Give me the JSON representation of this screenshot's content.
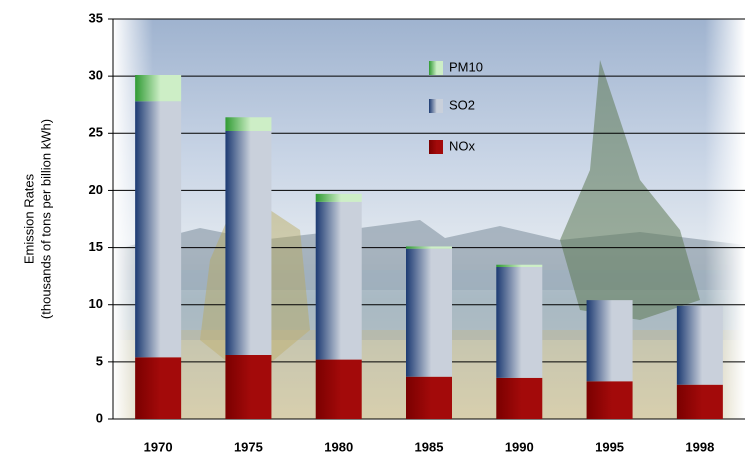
{
  "chart_data": {
    "type": "stacked_bar",
    "ylabel": [
      "Emission Rates",
      "(thousands of tons per billion kWh)"
    ],
    "categories": [
      "1970",
      "1975",
      "1980",
      "1985",
      "1990",
      "1995",
      "1998"
    ],
    "series": [
      {
        "name": "NOx",
        "color": "#7a0000",
        "color_light": "#a30a0a",
        "values": [
          5.4,
          5.6,
          5.2,
          3.7,
          3.6,
          3.3,
          3.0
        ]
      },
      {
        "name": "SO2",
        "color": "#1c3a72",
        "color_light": "#c9d0db",
        "values": [
          22.4,
          19.6,
          13.8,
          11.2,
          9.7,
          7.1,
          6.9
        ]
      },
      {
        "name": "PM10",
        "color": "#2f9a33",
        "color_light": "#cdeec6",
        "values": [
          2.3,
          1.2,
          0.7,
          0.2,
          0.2,
          0,
          0
        ]
      }
    ],
    "ylim": [
      0,
      35
    ],
    "yticks": [
      0,
      5,
      10,
      15,
      20,
      25,
      30,
      35
    ],
    "grid": true,
    "legend": "top"
  }
}
